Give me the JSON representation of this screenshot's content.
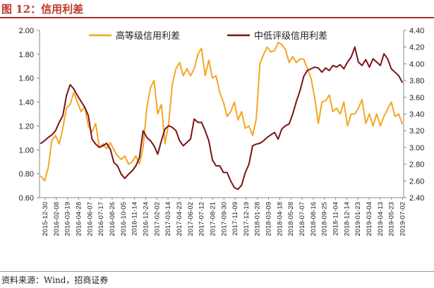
{
  "header": {
    "title": "图 12：信用利差"
  },
  "footer": {
    "source": "资料来源：Wind，招商证券"
  },
  "chart_data": {
    "type": "line",
    "title": "图 12：信用利差",
    "x_tick_labels": [
      "2015-12-30",
      "2016-02-08",
      "2016-03-19",
      "2016-04-28",
      "2016-06-07",
      "2016-07-17",
      "2016-08-26",
      "2016-10-05",
      "2016-11-14",
      "2016-12-24",
      "2017-02-02",
      "2017-03-14",
      "2017-04-23",
      "2017-06-02",
      "2017-07-12",
      "2017-08-21",
      "2017-09-30",
      "2017-11-09",
      "2017-12-19",
      "2018-01-28",
      "2018-03-09",
      "2018-04-18",
      "2018-05-28",
      "2018-07-07",
      "2018-08-16",
      "2018-09-25",
      "2018-11-04",
      "2018-12-14",
      "2019-01-23",
      "2019-03-04",
      "2019-04-13",
      "2019-05-23",
      "2019-07-02"
    ],
    "y_left": {
      "ticks": [
        "0.60",
        "0.80",
        "1.00",
        "1.20",
        "1.40",
        "1.60",
        "1.80",
        "2.00"
      ],
      "ylim": [
        0.6,
        2.0
      ]
    },
    "y_right": {
      "ticks": [
        "2.40",
        "2.60",
        "2.80",
        "3.00",
        "3.20",
        "3.40",
        "3.60",
        "3.80",
        "4.00",
        "4.20",
        "4.40"
      ],
      "ylim": [
        2.4,
        4.4
      ]
    },
    "legend_position": "top",
    "series": [
      {
        "name": "高等级信用利差",
        "axis": "left",
        "color": "#F5A623",
        "values": [
          0.78,
          0.74,
          0.85,
          1.08,
          1.12,
          1.05,
          1.18,
          1.35,
          1.38,
          1.48,
          1.4,
          1.32,
          1.36,
          1.2,
          1.15,
          1.22,
          1.02,
          1.05,
          1.01,
          1.06,
          1.0,
          0.95,
          0.92,
          0.95,
          0.88,
          0.9,
          0.95,
          0.88,
          1.02,
          1.35,
          1.52,
          1.58,
          1.3,
          1.38,
          1.05,
          1.22,
          1.55,
          1.68,
          1.73,
          1.62,
          1.68,
          1.62,
          1.68,
          1.8,
          1.85,
          1.62,
          1.75,
          1.6,
          1.62,
          1.48,
          1.4,
          1.28,
          1.32,
          1.4,
          1.25,
          1.32,
          1.18,
          1.2,
          1.12,
          1.26,
          1.72,
          1.8,
          1.86,
          1.82,
          1.83,
          1.9,
          1.88,
          1.84,
          1.73,
          1.78,
          1.73,
          1.76,
          1.76,
          1.68,
          1.6,
          1.44,
          1.22,
          1.4,
          1.41,
          1.46,
          1.32,
          1.35,
          1.3,
          1.4,
          1.2,
          1.3,
          1.3,
          1.35,
          1.42,
          1.22,
          1.3,
          1.2,
          1.3,
          1.2,
          1.28,
          1.34,
          1.4,
          1.28,
          1.3,
          1.22
        ]
      },
      {
        "name": "中低评级信用利差",
        "axis": "right",
        "color": "#7B1416",
        "values": [
          3.05,
          3.08,
          3.12,
          3.15,
          3.2,
          3.3,
          3.38,
          3.62,
          3.75,
          3.7,
          3.62,
          3.55,
          3.48,
          3.38,
          3.1,
          3.04,
          3.0,
          3.02,
          3.05,
          2.98,
          2.82,
          2.78,
          2.68,
          2.63,
          2.68,
          2.72,
          2.78,
          2.88,
          3.2,
          3.12,
          3.08,
          3.02,
          2.92,
          3.08,
          3.22,
          3.26,
          3.24,
          3.2,
          3.08,
          3.02,
          3.06,
          3.1,
          3.34,
          3.3,
          3.3,
          3.2,
          3.08,
          2.85,
          2.78,
          2.78,
          2.7,
          2.7,
          2.6,
          2.52,
          2.5,
          2.55,
          2.7,
          2.8,
          3.02,
          3.04,
          3.05,
          3.08,
          3.12,
          3.15,
          3.18,
          3.1,
          3.22,
          3.26,
          3.28,
          3.4,
          3.55,
          3.68,
          3.85,
          3.92,
          3.94,
          3.96,
          3.95,
          3.9,
          3.95,
          3.92,
          3.98,
          3.96,
          3.99,
          3.94,
          4.02,
          4.08,
          4.2,
          4.02,
          3.98,
          4.05,
          3.96,
          4.06,
          4.02,
          3.98,
          4.12,
          4.06,
          3.94,
          3.9,
          3.86,
          3.78
        ]
      }
    ]
  }
}
